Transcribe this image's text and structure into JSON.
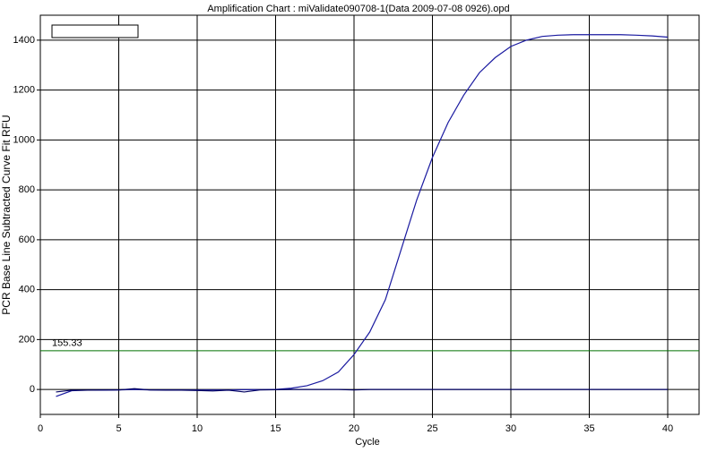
{
  "chart_data": {
    "type": "line",
    "title": "Amplification Chart : miValidate090708-1(Data 2009-07-08 0926).opd",
    "x_label": "Cycle",
    "y_label": "PCR Base Line Subtracted Curve Fit RFU",
    "x": [
      1,
      2,
      3,
      4,
      5,
      6,
      7,
      8,
      9,
      10,
      11,
      12,
      13,
      14,
      15,
      16,
      17,
      18,
      19,
      20,
      21,
      22,
      23,
      24,
      25,
      26,
      27,
      28,
      29,
      30,
      31,
      32,
      33,
      34,
      35,
      36,
      37,
      38,
      39,
      40
    ],
    "series": [
      {
        "color": "#1a1aa0",
        "values": [
          -28,
          -5,
          -3,
          -3,
          -2,
          0,
          -2,
          -2,
          -2,
          -2,
          -2,
          -2,
          -1,
          -1,
          0,
          5,
          15,
          35,
          70,
          140,
          230,
          360,
          560,
          760,
          930,
          1070,
          1180,
          1270,
          1330,
          1375,
          1400,
          1415,
          1420,
          1422,
          1422,
          1422,
          1422,
          1420,
          1417,
          1412
        ]
      },
      {
        "color": "#000060",
        "values": [
          -10,
          -3,
          -3,
          -2,
          -2,
          3,
          -2,
          -3,
          -3,
          -4,
          -6,
          -3,
          -10,
          -2,
          -1,
          0,
          0,
          0,
          0,
          -2,
          0,
          0,
          0,
          0,
          0,
          0,
          0,
          0,
          0,
          0,
          0,
          0,
          0,
          0,
          0,
          0,
          0,
          0,
          0,
          0
        ]
      }
    ],
    "threshold": 155.33,
    "threshold_color": "#007000",
    "xlim": [
      0,
      42
    ],
    "ylim": [
      -100,
      1500
    ],
    "xticks": [
      0,
      5,
      10,
      15,
      20,
      25,
      30,
      35,
      40
    ],
    "yticks": [
      0,
      200,
      400,
      600,
      800,
      1000,
      1200,
      1400
    ],
    "grid": true
  }
}
